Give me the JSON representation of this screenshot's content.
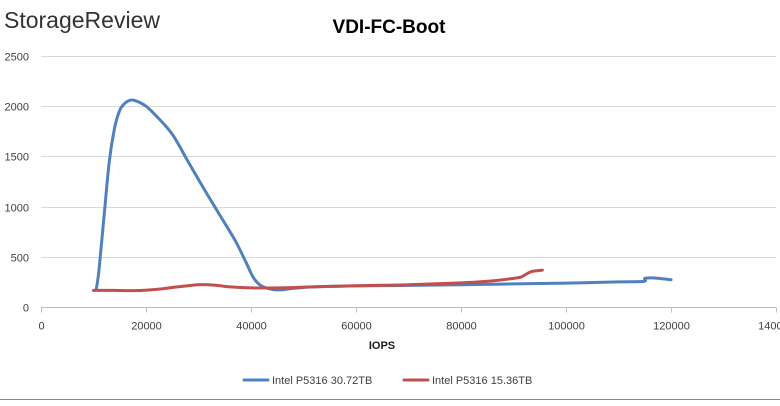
{
  "brand": "StorageReview",
  "chart_data": {
    "type": "line",
    "title": "VDI-FC-Boot",
    "xlabel": "IOPS",
    "ylabel": "",
    "xlim": [
      0,
      140000
    ],
    "ylim": [
      0,
      2500
    ],
    "x_ticks": [
      "0",
      "20000",
      "40000",
      "60000",
      "80000",
      "100000",
      "120000",
      "140000"
    ],
    "y_ticks": [
      "0",
      "500",
      "1000",
      "1500",
      "2000",
      "2500"
    ],
    "grid": "horizontal",
    "legend_position": "bottom",
    "series": [
      {
        "name": "Intel P5316 30.72TB",
        "color": "#4f81bd",
        "points": [
          [
            10500,
            170
          ],
          [
            11000,
            350
          ],
          [
            12000,
            900
          ],
          [
            13000,
            1450
          ],
          [
            14000,
            1780
          ],
          [
            15000,
            1960
          ],
          [
            16000,
            2030
          ],
          [
            17000,
            2060
          ],
          [
            18000,
            2055
          ],
          [
            20000,
            2000
          ],
          [
            22000,
            1900
          ],
          [
            25000,
            1720
          ],
          [
            28000,
            1450
          ],
          [
            31000,
            1180
          ],
          [
            34000,
            920
          ],
          [
            37000,
            660
          ],
          [
            39000,
            450
          ],
          [
            40500,
            290
          ],
          [
            42000,
            210
          ],
          [
            44000,
            175
          ],
          [
            46000,
            172
          ],
          [
            48000,
            185
          ],
          [
            52000,
            200
          ],
          [
            60000,
            210
          ],
          [
            70000,
            215
          ],
          [
            80000,
            222
          ],
          [
            90000,
            230
          ],
          [
            100000,
            238
          ],
          [
            110000,
            250
          ],
          [
            114800,
            255
          ],
          [
            115000,
            285
          ],
          [
            116500,
            290
          ],
          [
            118000,
            283
          ],
          [
            120000,
            272
          ]
        ]
      },
      {
        "name": "Intel P5316 15.36TB",
        "color": "#c0504d",
        "points": [
          [
            10000,
            165
          ],
          [
            14000,
            165
          ],
          [
            18000,
            163
          ],
          [
            22000,
            175
          ],
          [
            26000,
            200
          ],
          [
            30000,
            222
          ],
          [
            33000,
            218
          ],
          [
            36000,
            200
          ],
          [
            40000,
            190
          ],
          [
            45000,
            190
          ],
          [
            50000,
            198
          ],
          [
            55000,
            205
          ],
          [
            60000,
            212
          ],
          [
            70000,
            222
          ],
          [
            80000,
            240
          ],
          [
            86000,
            260
          ],
          [
            90000,
            285
          ],
          [
            91500,
            300
          ],
          [
            92500,
            330
          ],
          [
            93500,
            355
          ],
          [
            94500,
            362
          ],
          [
            95500,
            368
          ]
        ]
      }
    ]
  }
}
